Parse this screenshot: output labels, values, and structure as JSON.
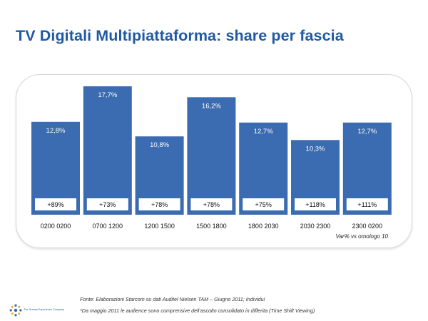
{
  "title": "TV Digitali Multipiattaforma: share per fascia",
  "variation_note": "Var% vs omologo 10",
  "source": "Fonte: Elaborazioni Starcom su dati Auditel Nielsen TAM – Giugno 2011; Individui",
  "footnote": "*Da maggio 2011 le audience sono comprensive dell’ascolto consolidato in differita (Time Shift Viewing)",
  "company": "The Human Experience Company",
  "colors": {
    "bar": "#3b6bb0",
    "title": "#1f5aa6"
  },
  "chart_data": {
    "type": "bar",
    "categories": [
      "0200 0200",
      "0700 1200",
      "1200 1500",
      "1500 1800",
      "1800 2030",
      "2030 2300",
      "2300 0200"
    ],
    "values": [
      12.8,
      17.7,
      10.8,
      16.2,
      12.7,
      10.3,
      12.7
    ],
    "value_labels": [
      "12,8%",
      "17,7%",
      "10,8%",
      "16,2%",
      "12,7%",
      "10,3%",
      "12,7%"
    ],
    "variation_labels": [
      "+89%",
      "+73%",
      "+78%",
      "+78%",
      "+75%",
      "+118%",
      "+111%"
    ],
    "unit": "%",
    "ylim": [
      0,
      17.7
    ],
    "grid": false,
    "legend": "none"
  }
}
